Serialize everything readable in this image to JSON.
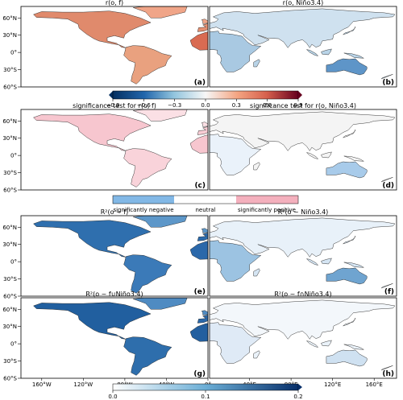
{
  "panels": [
    {
      "id": "a",
      "title": "r(o, f)",
      "letter": "(a)",
      "scheme": "corr_f"
    },
    {
      "id": "b",
      "title": "r(o, Niño3.4)",
      "letter": "(b)",
      "scheme": "corr_n"
    },
    {
      "id": "c",
      "title": "significance test for r(o, f)",
      "letter": "(c)",
      "scheme": "sig_f"
    },
    {
      "id": "d",
      "title": "significance test for r(o, Niño3.4)",
      "letter": "(d)",
      "scheme": "sig_n"
    },
    {
      "id": "e",
      "title": "R²(o ~ f)",
      "letter": "(e)",
      "scheme": "r2_f"
    },
    {
      "id": "f",
      "title": "R²(o ~ Niño3.4)",
      "letter": "(f)",
      "scheme": "r2_n"
    },
    {
      "id": "g",
      "title": "R²(o ~ f∪Niño3.4)",
      "letter": "(g)",
      "scheme": "r2_u"
    },
    {
      "id": "h",
      "title": "R²(o ~ f∩Niño3.4)",
      "letter": "(h)",
      "scheme": "r2_i"
    }
  ],
  "lat_labels": [
    "60°N",
    "30°N",
    "0°",
    "30°S",
    "60°S"
  ],
  "lon_labels_left": [
    "160°W",
    "120°W",
    "80°W",
    "40°W",
    "0°"
  ],
  "lon_labels_right": [
    "40°E",
    "80°E",
    "120°E",
    "160°E"
  ],
  "colorbar_corr": {
    "ticks": [
      "−0.9",
      "−0.6",
      "−0.3",
      "0.0",
      "0.3",
      "0.6",
      "0.9"
    ],
    "min_color": "#053061",
    "mid_color": "#f7f7f7",
    "max_color": "#67001f"
  },
  "colorbar_sig": {
    "labels": [
      "significantly negative",
      "neutral",
      "significantly positive"
    ],
    "colors": [
      "#82b8e6",
      "#ffffff",
      "#f4b0bd"
    ]
  },
  "colorbar_r2": {
    "ticks": [
      "0.0",
      "0.1",
      "0.2"
    ],
    "min_color": "#ffffff",
    "max_color": "#08306b"
  },
  "colors": {
    "land_outline": "#222222",
    "ocean": "#ffffff"
  }
}
